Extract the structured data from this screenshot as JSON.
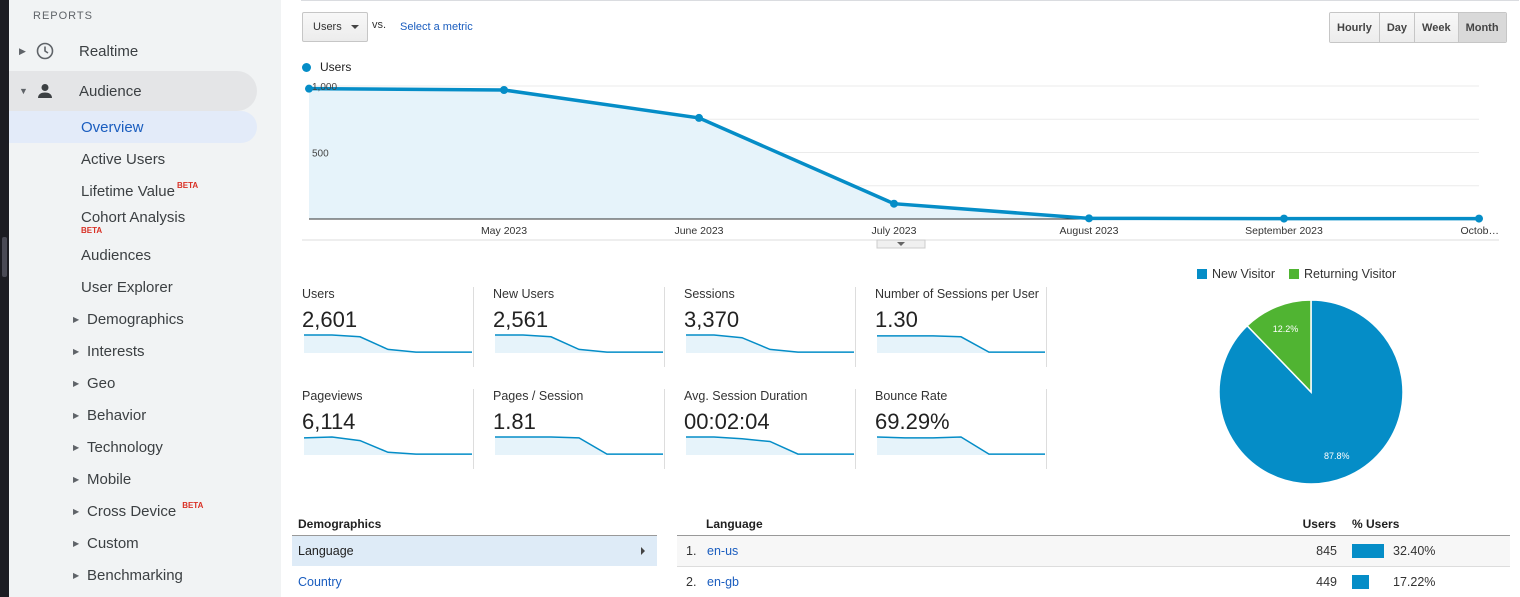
{
  "sidebar": {
    "heading": "REPORTS",
    "top_items": [
      {
        "label": "Realtime"
      },
      {
        "label": "Audience"
      }
    ],
    "sub_items": [
      {
        "label": "Overview"
      },
      {
        "label": "Active Users"
      },
      {
        "label": "Lifetime Value",
        "badge": "BETA"
      },
      {
        "label": "Cohort Analysis",
        "badge": "BETA"
      },
      {
        "label": "Audiences"
      },
      {
        "label": "User Explorer"
      }
    ],
    "groups": [
      {
        "label": "Demographics"
      },
      {
        "label": "Interests"
      },
      {
        "label": "Geo"
      },
      {
        "label": "Behavior"
      },
      {
        "label": "Technology"
      },
      {
        "label": "Mobile"
      },
      {
        "label": "Cross Device",
        "badge": "BETA"
      },
      {
        "label": "Custom"
      },
      {
        "label": "Benchmarking"
      }
    ]
  },
  "toolbar": {
    "metric_select": "Users",
    "vs_label": "vs.",
    "select_metric_link": "Select a metric",
    "granularity": [
      "Hourly",
      "Day",
      "Week",
      "Month"
    ],
    "selected_granularity": "Month"
  },
  "chart_data": [
    {
      "type": "area",
      "series": [
        {
          "name": "Users",
          "values": [
            980,
            970,
            760,
            115,
            5,
            3,
            3
          ]
        }
      ],
      "x_labels": [
        "",
        "May 2023",
        "June 2023",
        "July 2023",
        "August 2023",
        "September 2023",
        "Octob…"
      ],
      "y_ticks": [
        "1,000",
        "500"
      ],
      "ylim": [
        0,
        1000
      ],
      "color": "#058dc7"
    },
    {
      "type": "pie",
      "legend_position": "top",
      "slices": [
        {
          "name": "New Visitor",
          "value": 87.8,
          "label": "87.8%",
          "color": "#058dc7"
        },
        {
          "name": "Returning Visitor",
          "value": 12.2,
          "label": "12.2%",
          "color": "#50b432"
        }
      ]
    }
  ],
  "metrics": [
    {
      "label": "Users",
      "value": "2,601",
      "spark": [
        1,
        1,
        0.9,
        0.2,
        0.05,
        0.05,
        0.05
      ]
    },
    {
      "label": "New Users",
      "value": "2,561",
      "spark": [
        1,
        1,
        0.9,
        0.2,
        0.05,
        0.05,
        0.05
      ]
    },
    {
      "label": "Sessions",
      "value": "3,370",
      "spark": [
        1,
        1,
        0.85,
        0.2,
        0.05,
        0.05,
        0.05
      ]
    },
    {
      "label": "Number of Sessions per User",
      "value": "1.30",
      "spark": [
        0.95,
        0.95,
        0.95,
        0.9,
        0.05,
        0.05,
        0.05
      ]
    },
    {
      "label": "Pageviews",
      "value": "6,114",
      "spark": [
        0.95,
        1,
        0.8,
        0.15,
        0.05,
        0.05,
        0.05
      ]
    },
    {
      "label": "Pages / Session",
      "value": "1.81",
      "spark": [
        1,
        1,
        1,
        0.95,
        0.05,
        0.05,
        0.05
      ]
    },
    {
      "label": "Avg. Session Duration",
      "value": "00:02:04",
      "spark": [
        1,
        1,
        0.9,
        0.75,
        0.05,
        0.05,
        0.05
      ]
    },
    {
      "label": "Bounce Rate",
      "value": "69.29%",
      "spark": [
        1,
        0.95,
        0.95,
        1,
        0.05,
        0.05,
        0.05
      ]
    }
  ],
  "demographics": {
    "heading": "Demographics",
    "items": [
      "Language",
      "Country"
    ]
  },
  "language_table": {
    "headers": {
      "dimension": "Language",
      "users": "Users",
      "pct": "% Users"
    },
    "rows": [
      {
        "num": "1.",
        "lang": "en-us",
        "users": "845",
        "pct": "32.40%",
        "share": 0.324
      },
      {
        "num": "2.",
        "lang": "en-gb",
        "users": "449",
        "pct": "17.22%",
        "share": 0.1722
      }
    ]
  }
}
